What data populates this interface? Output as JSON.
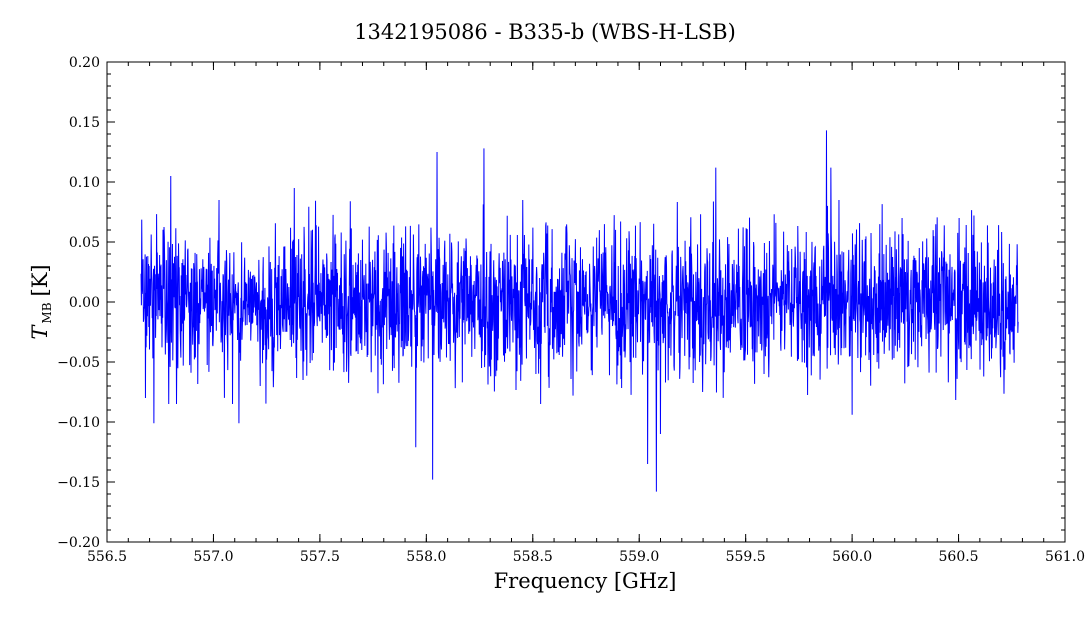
{
  "chart_data": {
    "type": "line",
    "title": "1342195086 - B335-b (WBS-H-LSB)",
    "xlabel": "Frequency [GHz]",
    "ylabel_main": "T",
    "ylabel_sub": "MB",
    "ylabel_unit": "[K]",
    "xlim": [
      556.5,
      561.0
    ],
    "ylim": [
      -0.2,
      0.2
    ],
    "x_ticks": [
      556.5,
      557.0,
      557.5,
      558.0,
      558.5,
      559.0,
      559.5,
      560.0,
      560.5,
      561.0
    ],
    "x_tick_labels": [
      "556.5",
      "557.0",
      "557.5",
      "558.0",
      "558.5",
      "559.0",
      "559.5",
      "560.0",
      "560.5",
      "561.0"
    ],
    "y_ticks": [
      -0.2,
      -0.15,
      -0.1,
      -0.05,
      0.0,
      0.05,
      0.1,
      0.15,
      0.2
    ],
    "y_tick_labels": [
      "−0.20",
      "−0.15",
      "−0.10",
      "−0.05",
      "0.00",
      "0.05",
      "0.10",
      "0.15",
      "0.20"
    ],
    "grid": false,
    "series": [
      {
        "color": "#0000ff",
        "x_range": [
          556.66,
          560.78
        ],
        "noise_rms": 0.03,
        "notable_points": [
          {
            "x": 556.68,
            "y": -0.08
          },
          {
            "x": 556.72,
            "y": -0.101
          },
          {
            "x": 556.8,
            "y": 0.105
          },
          {
            "x": 557.12,
            "y": -0.101
          },
          {
            "x": 557.38,
            "y": 0.095
          },
          {
            "x": 557.95,
            "y": -0.121
          },
          {
            "x": 558.03,
            "y": -0.148
          },
          {
            "x": 558.05,
            "y": 0.125
          },
          {
            "x": 558.27,
            "y": 0.128
          },
          {
            "x": 559.04,
            "y": -0.135
          },
          {
            "x": 559.08,
            "y": -0.158
          },
          {
            "x": 559.1,
            "y": -0.11
          },
          {
            "x": 559.36,
            "y": 0.112
          },
          {
            "x": 559.88,
            "y": 0.143
          },
          {
            "x": 559.9,
            "y": 0.112
          },
          {
            "x": 560.0,
            "y": -0.094
          }
        ]
      }
    ]
  }
}
